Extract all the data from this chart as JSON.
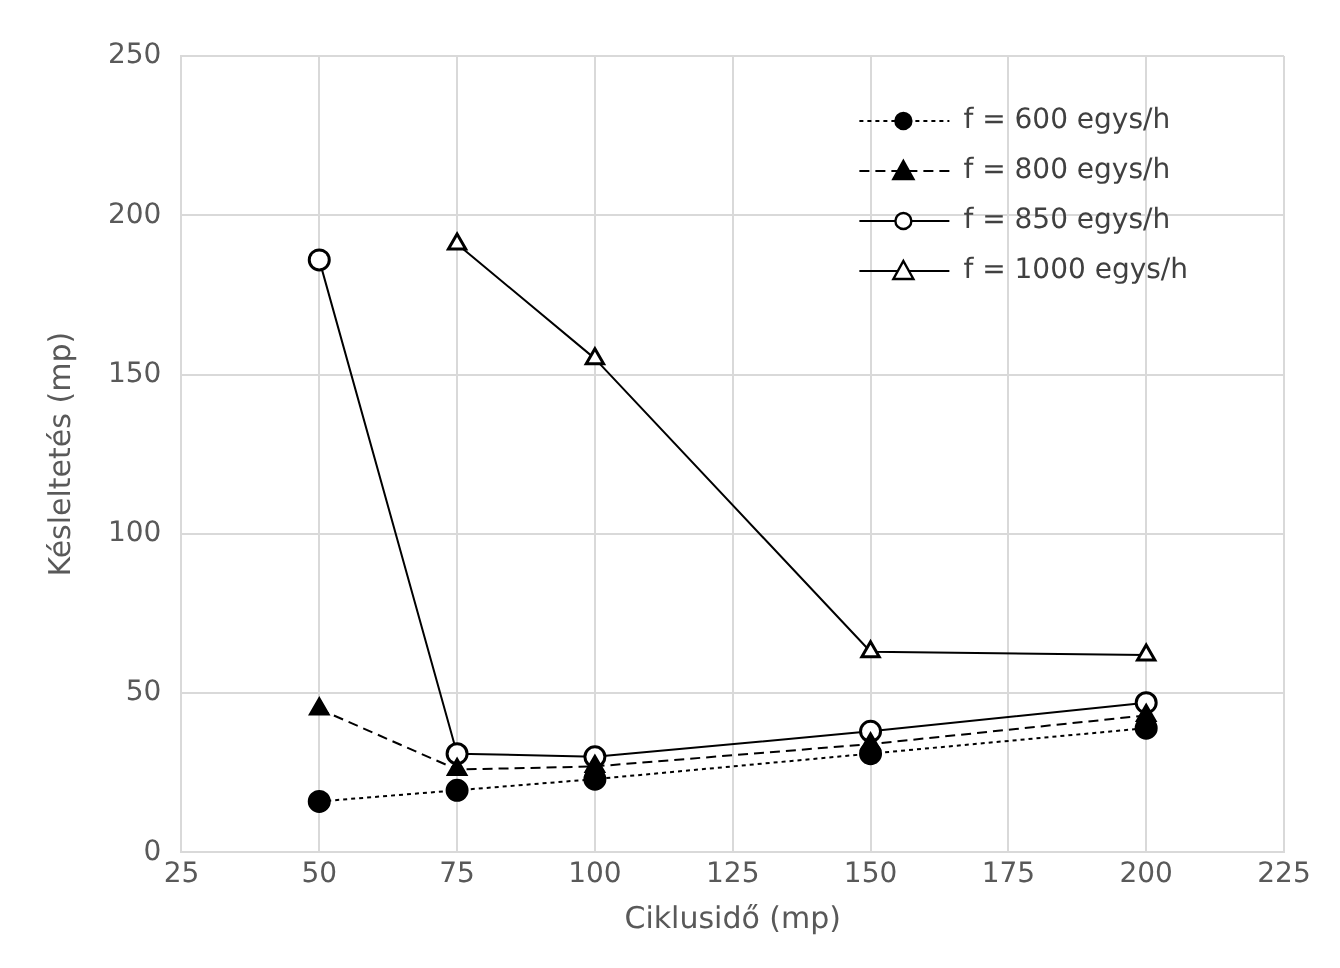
{
  "chart_data": {
    "type": "line",
    "xlabel": "Ciklusidő (mp)",
    "ylabel": "Késleltetés (mp)",
    "x": [
      50,
      75,
      100,
      150,
      200
    ],
    "xlim": [
      25,
      225
    ],
    "xticks": [
      25,
      50,
      75,
      100,
      125,
      150,
      175,
      200,
      225
    ],
    "ylim": [
      0,
      250
    ],
    "yticks": [
      0,
      50,
      100,
      150,
      200,
      250
    ],
    "grid": true,
    "legend": "top right",
    "series": [
      {
        "name": "f = 600 egys/h",
        "color": "#000000",
        "values": [
          16,
          19.5,
          23,
          31,
          39
        ],
        "marker": "circle",
        "line_style": "dotted"
      },
      {
        "name": "f = 800 egys/h",
        "color": "#000000",
        "values": [
          45,
          26,
          27,
          34,
          43
        ],
        "marker": "triangle",
        "line_style": "dashed"
      },
      {
        "name": "f = 850 egys/h",
        "color": "#000000",
        "colors": [
          "#ffffff",
          "#ffffff",
          "#ffffff",
          "#ffffff",
          "#ffffff"
        ],
        "values": [
          186,
          31,
          30,
          38,
          47
        ],
        "marker": "circle",
        "line_style": "solid"
      },
      {
        "name": "f = 1000 egys/h",
        "color": "#000000",
        "colors": [
          "#ffffff",
          "#ffffff",
          "#ffffff",
          "#ffffff"
        ],
        "x": [
          75,
          100,
          150,
          200
        ],
        "values": [
          191,
          155,
          63,
          62
        ],
        "marker": "triangle",
        "line_style": "solid"
      }
    ]
  }
}
